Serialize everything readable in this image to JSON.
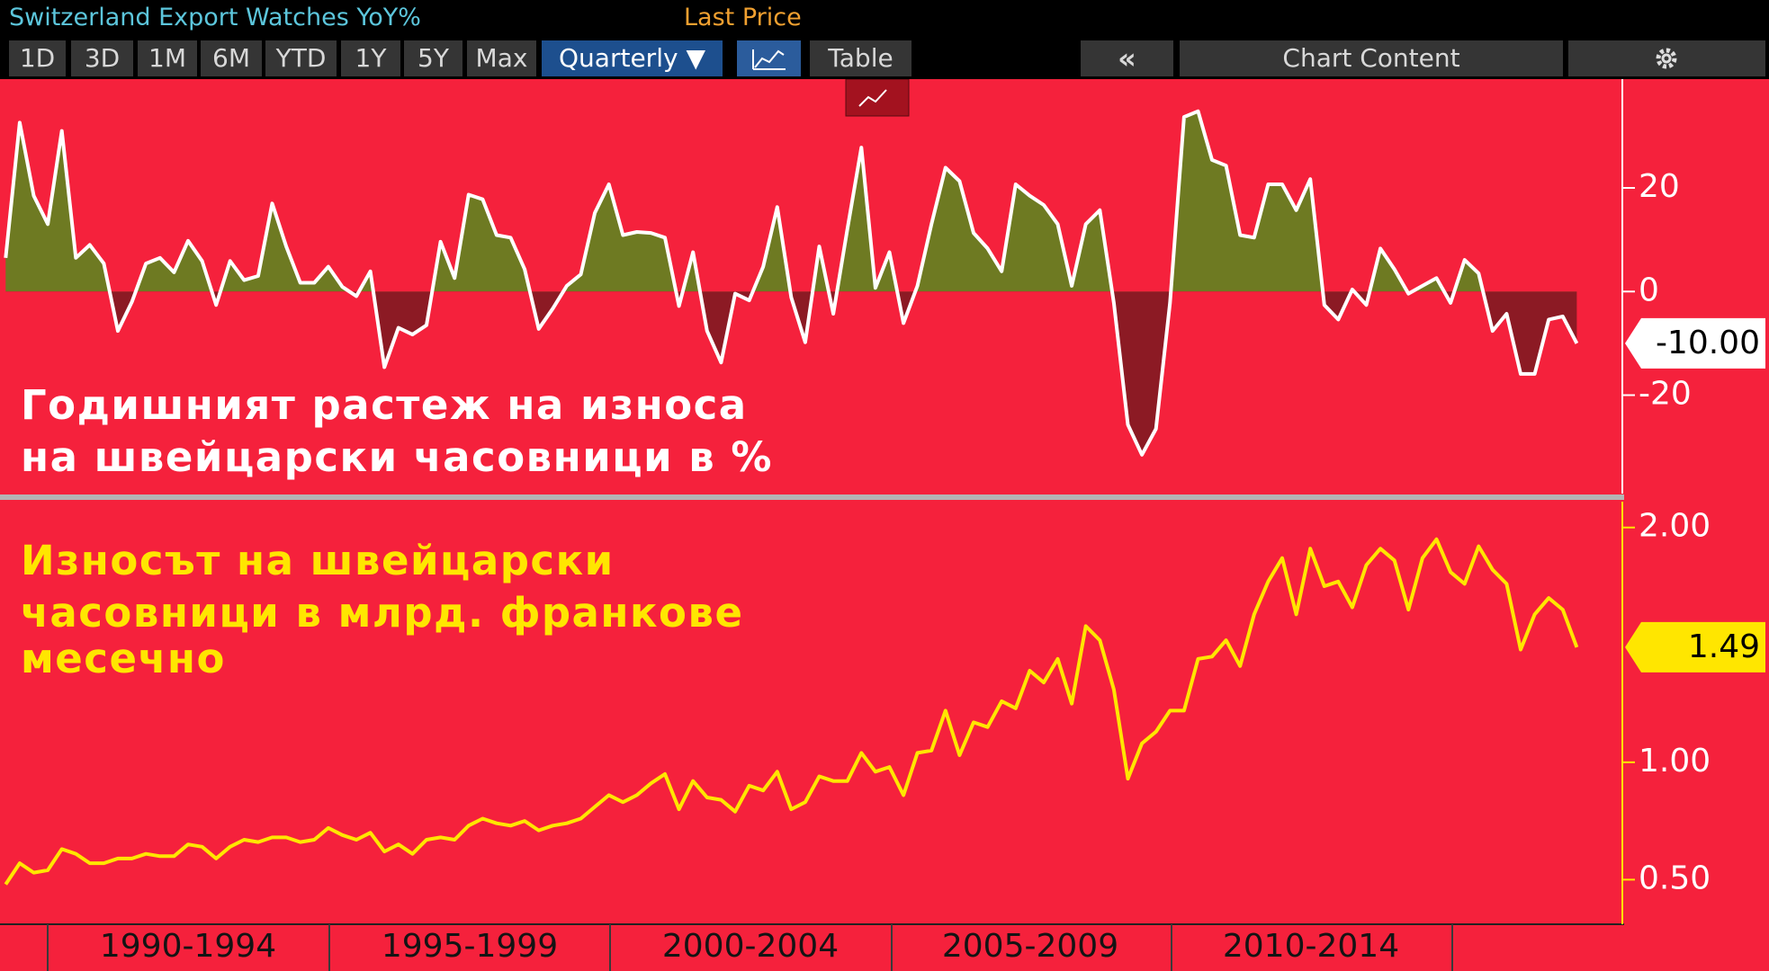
{
  "header": {
    "title": "Switzerland Export Watches YoY%",
    "field": "Last Price"
  },
  "toolbar": {
    "ranges": [
      "1D",
      "3D",
      "1M",
      "6M",
      "YTD",
      "1Y",
      "5Y",
      "Max"
    ],
    "frequency": "Quarterly ▼",
    "table": "Table",
    "collapse": "«",
    "chart_content": "Chart Content"
  },
  "x_axis": {
    "periods": [
      "1990-1994",
      "1995-1999",
      "2000-2004",
      "2005-2009",
      "2010-2014"
    ]
  },
  "chart_data": [
    {
      "type": "area",
      "ylim": [
        -39,
        41
      ],
      "yticks": [
        20,
        0,
        -20
      ],
      "color": "#ffffff",
      "fill_positive": "#6e7a22",
      "fill_negative": "#8c1a24",
      "annotation": [
        "Годишният растеж на износа",
        "на швейцарски часовници в %"
      ],
      "annotation_color": "#ffffff",
      "categories": [
        null,
        null,
        null,
        null,
        null,
        null,
        null,
        null,
        null,
        null,
        null,
        null,
        null,
        null,
        null,
        null,
        null,
        null,
        null,
        null,
        null,
        null,
        null,
        null,
        null,
        null,
        null,
        null,
        null,
        null,
        null,
        null,
        null,
        null,
        null,
        null,
        null,
        null,
        null,
        null,
        null,
        null,
        null,
        null,
        null,
        null,
        null,
        null,
        null,
        null,
        null,
        null,
        null,
        null,
        null,
        null,
        null,
        null,
        null,
        null,
        null,
        null,
        null,
        null,
        null,
        null,
        null,
        null,
        null,
        null,
        null,
        null,
        null,
        null,
        null,
        null,
        null,
        null,
        null,
        null,
        null,
        null,
        null,
        null,
        null,
        null,
        null,
        null,
        null,
        null,
        null,
        null,
        null,
        null,
        null,
        null,
        null,
        null,
        null,
        null,
        null,
        null,
        null,
        null,
        null,
        null,
        null,
        null,
        null,
        null,
        null,
        null,
        null
      ],
      "values": [
        6.5,
        32.6,
        18.5,
        13,
        31,
        6.5,
        9,
        5.4,
        -7.6,
        -2,
        5.4,
        6.5,
        3.7,
        9.8,
        5.9,
        -2.6,
        5.9,
        2.2,
        3,
        17,
        8.7,
        1.7,
        1.7,
        4.8,
        0.9,
        -0.9,
        3.9,
        -14.6,
        -7,
        -8.3,
        -6.5,
        9.6,
        2.6,
        18.7,
        17.8,
        10.9,
        10.4,
        4.3,
        -7.2,
        -3.3,
        1.1,
        3.3,
        15.2,
        20.7,
        10.9,
        11.5,
        11.3,
        10.4,
        -2.8,
        7.6,
        -7.6,
        -13.7,
        -0.4,
        -1.7,
        4.8,
        16.3,
        -1.1,
        -9.8,
        8.7,
        -4.3,
        12,
        27.8,
        0.7,
        7.6,
        -6.1,
        1.1,
        13,
        23.9,
        21.3,
        11.3,
        8.3,
        3.9,
        20.7,
        18.5,
        16.7,
        13,
        1.1,
        13,
        15.7,
        -2.2,
        -25.7,
        -31.5,
        -26.5,
        -2.2,
        33.7,
        34.8,
        25.4,
        24.3,
        10.9,
        10.4,
        20.7,
        20.7,
        15.7,
        21.7,
        -2.6,
        -5.4,
        0.4,
        -2.6,
        8.3,
        4.3,
        -0.4,
        1.1,
        2.6,
        -2.2,
        6.1,
        3.5,
        -7.6,
        -4.3,
        -15.9,
        -15.9,
        -5.4,
        -4.8,
        -10
      ],
      "value_labels": {
        "112": "-10.00"
      },
      "value_label_fill": "#ffffff",
      "value_label_text": "#000000"
    },
    {
      "type": "line",
      "ylim": [
        0.31,
        2.11
      ],
      "yticks": [
        {
          "value": 0.5,
          "label": "0.50"
        },
        {
          "value": 1,
          "label": "1.00"
        },
        {
          "value": 2,
          "label": "2.00"
        }
      ],
      "color": "#ffe600",
      "annotation": [
        "Износът на швейцарски",
        "часовници в млрд. франкове",
        "месечно"
      ],
      "annotation_color": "#ffe600",
      "categories": [
        null,
        null,
        null,
        null,
        null,
        null,
        null,
        null,
        null,
        null,
        null,
        null,
        null,
        null,
        null,
        null,
        null,
        null,
        null,
        null,
        null,
        null,
        null,
        null,
        null,
        null,
        null,
        null,
        null,
        null,
        null,
        null,
        null,
        null,
        null,
        null,
        null,
        null,
        null,
        null,
        null,
        null,
        null,
        null,
        null,
        null,
        null,
        null,
        null,
        null,
        null,
        null,
        null,
        null,
        null,
        null,
        null,
        null,
        null,
        null,
        null,
        null,
        null,
        null,
        null,
        null,
        null,
        null,
        null,
        null,
        null,
        null,
        null,
        null,
        null,
        null,
        null,
        null,
        null,
        null,
        null,
        null,
        null,
        null,
        null,
        null,
        null,
        null,
        null,
        null,
        null,
        null,
        null,
        null,
        null,
        null,
        null,
        null,
        null,
        null,
        null,
        null,
        null,
        null,
        null,
        null,
        null,
        null,
        null,
        null,
        null,
        null,
        null
      ],
      "values": [
        0.48,
        0.57,
        0.53,
        0.54,
        0.63,
        0.61,
        0.57,
        0.57,
        0.59,
        0.59,
        0.61,
        0.6,
        0.6,
        0.65,
        0.64,
        0.59,
        0.64,
        0.67,
        0.66,
        0.68,
        0.68,
        0.66,
        0.67,
        0.72,
        0.69,
        0.67,
        0.7,
        0.62,
        0.65,
        0.61,
        0.67,
        0.68,
        0.67,
        0.73,
        0.76,
        0.74,
        0.73,
        0.75,
        0.71,
        0.73,
        0.74,
        0.76,
        0.81,
        0.86,
        0.83,
        0.86,
        0.91,
        0.95,
        0.8,
        0.92,
        0.85,
        0.84,
        0.79,
        0.9,
        0.88,
        0.96,
        0.8,
        0.83,
        0.94,
        0.92,
        0.92,
        1.04,
        0.96,
        0.98,
        0.86,
        1.04,
        1.05,
        1.22,
        1.03,
        1.17,
        1.15,
        1.26,
        1.23,
        1.39,
        1.34,
        1.44,
        1.25,
        1.58,
        1.52,
        1.31,
        0.93,
        1.08,
        1.13,
        1.22,
        1.22,
        1.44,
        1.45,
        1.52,
        1.41,
        1.63,
        1.77,
        1.87,
        1.63,
        1.91,
        1.75,
        1.77,
        1.66,
        1.84,
        1.91,
        1.86,
        1.65,
        1.87,
        1.95,
        1.81,
        1.76,
        1.92,
        1.82,
        1.76,
        1.48,
        1.63,
        1.7,
        1.65,
        1.49
      ],
      "value_labels": {
        "112": "1.49"
      },
      "value_label_fill": "#ffe600",
      "value_label_text": "#000000"
    }
  ]
}
